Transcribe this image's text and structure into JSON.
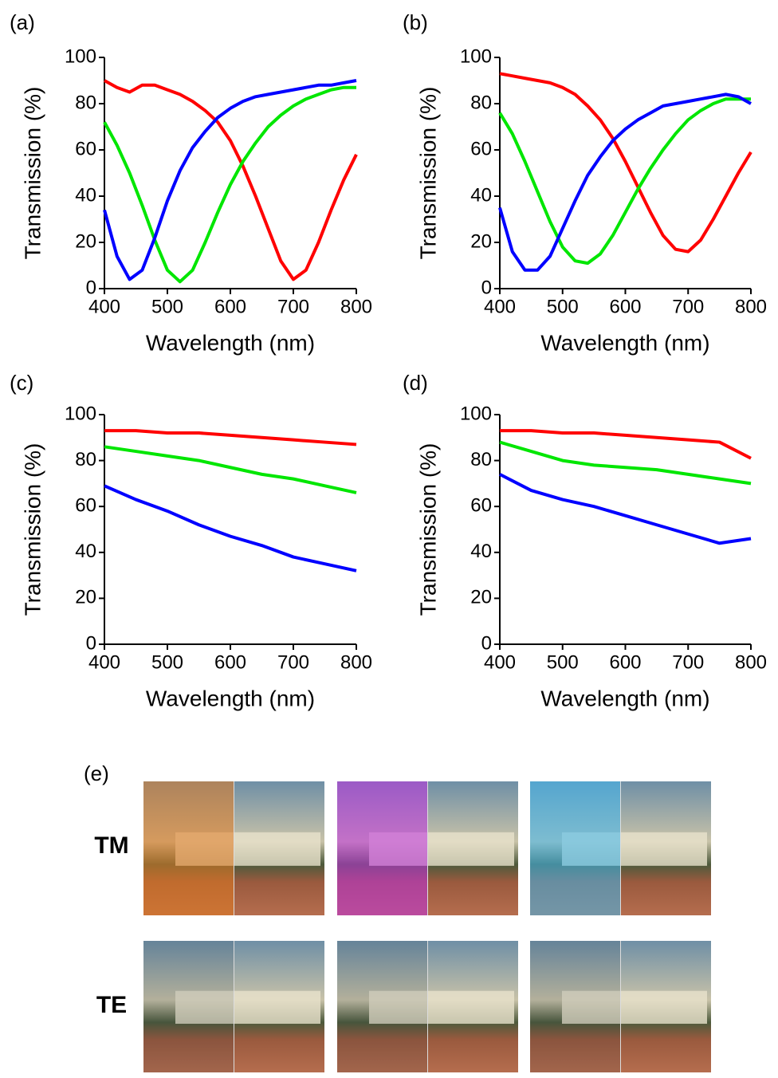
{
  "chart_data": [
    {
      "type": "line",
      "panel_label": "(a)",
      "xlabel": "Wavelength (nm)",
      "ylabel": "Transmission (%)",
      "xlim": [
        400,
        800
      ],
      "xticks": [
        400,
        500,
        600,
        700,
        800
      ],
      "ylim": [
        0,
        100
      ],
      "yticks": [
        0,
        20,
        40,
        60,
        80,
        100
      ],
      "x": [
        400,
        420,
        440,
        460,
        480,
        500,
        520,
        540,
        560,
        580,
        600,
        620,
        640,
        660,
        680,
        700,
        720,
        740,
        760,
        780,
        800
      ],
      "series": [
        {
          "color": "#ff0000",
          "values": [
            90,
            87,
            85,
            88,
            88,
            86,
            84,
            81,
            77,
            72,
            64,
            53,
            40,
            26,
            12,
            4,
            8,
            20,
            34,
            47,
            58
          ]
        },
        {
          "color": "#00e600",
          "values": [
            72,
            62,
            50,
            36,
            21,
            8,
            3,
            8,
            20,
            33,
            45,
            55,
            63,
            70,
            75,
            79,
            82,
            84,
            86,
            87,
            87
          ]
        },
        {
          "color": "#0000ff",
          "values": [
            34,
            14,
            4,
            8,
            22,
            38,
            51,
            61,
            68,
            74,
            78,
            81,
            83,
            84,
            85,
            86,
            87,
            88,
            88,
            89,
            90
          ]
        }
      ]
    },
    {
      "type": "line",
      "panel_label": "(b)",
      "xlabel": "Wavelength (nm)",
      "ylabel": "Transmission (%)",
      "xlim": [
        400,
        800
      ],
      "xticks": [
        400,
        500,
        600,
        700,
        800
      ],
      "ylim": [
        0,
        100
      ],
      "yticks": [
        0,
        20,
        40,
        60,
        80,
        100
      ],
      "x": [
        400,
        420,
        440,
        460,
        480,
        500,
        520,
        540,
        560,
        580,
        600,
        620,
        640,
        660,
        680,
        700,
        720,
        740,
        760,
        780,
        800
      ],
      "series": [
        {
          "color": "#ff0000",
          "values": [
            93,
            92,
            91,
            90,
            89,
            87,
            84,
            79,
            73,
            65,
            55,
            44,
            33,
            23,
            17,
            16,
            21,
            30,
            40,
            50,
            59
          ]
        },
        {
          "color": "#00e600",
          "values": [
            76,
            67,
            55,
            42,
            29,
            18,
            12,
            11,
            15,
            23,
            33,
            43,
            52,
            60,
            67,
            73,
            77,
            80,
            82,
            82,
            82
          ]
        },
        {
          "color": "#0000ff",
          "values": [
            35,
            16,
            8,
            8,
            14,
            26,
            38,
            49,
            57,
            64,
            69,
            73,
            76,
            79,
            80,
            81,
            82,
            83,
            84,
            83,
            80
          ]
        }
      ]
    },
    {
      "type": "line",
      "panel_label": "(c)",
      "xlabel": "Wavelength (nm)",
      "ylabel": "Transmission (%)",
      "xlim": [
        400,
        800
      ],
      "xticks": [
        400,
        500,
        600,
        700,
        800
      ],
      "ylim": [
        0,
        100
      ],
      "yticks": [
        0,
        20,
        40,
        60,
        80,
        100
      ],
      "x": [
        400,
        450,
        500,
        550,
        600,
        650,
        700,
        750,
        800
      ],
      "series": [
        {
          "color": "#ff0000",
          "values": [
            93,
            93,
            92,
            92,
            91,
            90,
            89,
            88,
            87
          ]
        },
        {
          "color": "#00e600",
          "values": [
            86,
            84,
            82,
            80,
            77,
            74,
            72,
            69,
            66
          ]
        },
        {
          "color": "#0000ff",
          "values": [
            69,
            63,
            58,
            52,
            47,
            43,
            38,
            35,
            32
          ]
        }
      ]
    },
    {
      "type": "line",
      "panel_label": "(d)",
      "xlabel": "Wavelength (nm)",
      "ylabel": "Transmission (%)",
      "xlim": [
        400,
        800
      ],
      "xticks": [
        400,
        500,
        600,
        700,
        800
      ],
      "ylim": [
        0,
        100
      ],
      "yticks": [
        0,
        20,
        40,
        60,
        80,
        100
      ],
      "x": [
        400,
        450,
        500,
        550,
        600,
        650,
        700,
        750,
        800
      ],
      "series": [
        {
          "color": "#ff0000",
          "values": [
            93,
            93,
            92,
            92,
            91,
            90,
            89,
            88,
            81
          ]
        },
        {
          "color": "#00e600",
          "values": [
            88,
            84,
            80,
            78,
            77,
            76,
            74,
            72,
            70
          ]
        },
        {
          "color": "#0000ff",
          "values": [
            74,
            67,
            63,
            60,
            56,
            52,
            48,
            44,
            46
          ]
        }
      ]
    }
  ],
  "photo_panel": {
    "label": "(e)",
    "rows": [
      "TM",
      "TE"
    ]
  }
}
